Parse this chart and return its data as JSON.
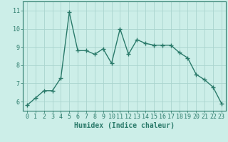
{
  "x": [
    0,
    1,
    2,
    3,
    4,
    5,
    6,
    7,
    8,
    9,
    10,
    11,
    12,
    13,
    14,
    15,
    16,
    17,
    18,
    19,
    20,
    21,
    22,
    23
  ],
  "y": [
    5.8,
    6.2,
    6.6,
    6.6,
    7.3,
    10.9,
    8.8,
    8.8,
    8.6,
    8.9,
    8.1,
    10.0,
    8.6,
    9.4,
    9.2,
    9.1,
    9.1,
    9.1,
    8.7,
    8.4,
    7.5,
    7.2,
    6.8,
    5.9
  ],
  "xlabel": "Humidex (Indice chaleur)",
  "ylim": [
    5.5,
    11.5
  ],
  "xlim": [
    -0.5,
    23.5
  ],
  "bg_color": "#cceee8",
  "grid_color": "#aad4ce",
  "line_color": "#2a7a6a",
  "marker": "+",
  "linewidth": 1.0,
  "markersize": 4,
  "markeredgewidth": 1.0,
  "xticks": [
    0,
    1,
    2,
    3,
    4,
    5,
    6,
    7,
    8,
    9,
    10,
    11,
    12,
    13,
    14,
    15,
    16,
    17,
    18,
    19,
    20,
    21,
    22,
    23
  ],
  "yticks": [
    6,
    7,
    8,
    9,
    10,
    11
  ],
  "xlabel_fontsize": 7,
  "tick_fontsize": 6
}
